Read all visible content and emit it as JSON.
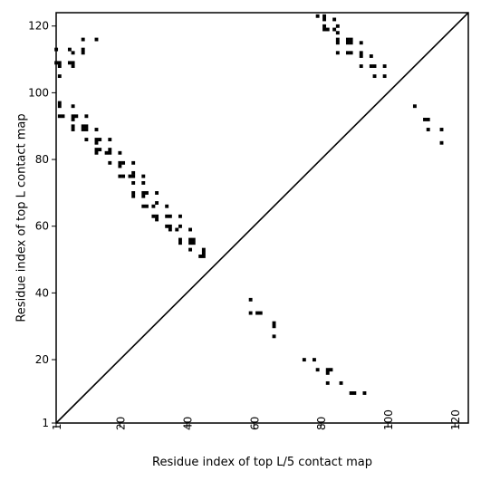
{
  "chart_data": {
    "type": "scatter",
    "title": "",
    "xlabel": "Residue index of top L/5 contact map",
    "ylabel": "Residue index of top L contact map",
    "xlim": [
      1,
      124
    ],
    "ylim": [
      1,
      124
    ],
    "x_ticks": [
      1,
      20,
      40,
      60,
      80,
      100,
      120
    ],
    "y_ticks": [
      1,
      20,
      40,
      60,
      80,
      100,
      120
    ],
    "x_tick_rotation": -90,
    "grid": false,
    "legend": "none",
    "diagonal": {
      "from": [
        1,
        1
      ],
      "to": [
        124,
        124
      ]
    },
    "marker_color": "#000000",
    "series": [
      {
        "values": [
          [
            1,
            113
          ],
          [
            1,
            109
          ],
          [
            2,
            109
          ],
          [
            2,
            108
          ],
          [
            2,
            105
          ],
          [
            2,
            97
          ],
          [
            2,
            96
          ],
          [
            2,
            93
          ],
          [
            3,
            93
          ],
          [
            5,
            113
          ],
          [
            5,
            109
          ],
          [
            6,
            109
          ],
          [
            6,
            108
          ],
          [
            6,
            112
          ],
          [
            6,
            96
          ],
          [
            6,
            93
          ],
          [
            6,
            92
          ],
          [
            7,
            93
          ],
          [
            6,
            90
          ],
          [
            6,
            89
          ],
          [
            9,
            116
          ],
          [
            9,
            113
          ],
          [
            9,
            112
          ],
          [
            9,
            90
          ],
          [
            9,
            89
          ],
          [
            10,
            89
          ],
          [
            10,
            93
          ],
          [
            10,
            86
          ],
          [
            10,
            90
          ],
          [
            13,
            116
          ],
          [
            13,
            89
          ],
          [
            13,
            86
          ],
          [
            14,
            86
          ],
          [
            13,
            85
          ],
          [
            13,
            83
          ],
          [
            13,
            82
          ],
          [
            14,
            83
          ],
          [
            16,
            82
          ],
          [
            17,
            82
          ],
          [
            17,
            83
          ],
          [
            17,
            86
          ],
          [
            17,
            79
          ],
          [
            20,
            82
          ],
          [
            20,
            79
          ],
          [
            21,
            79
          ],
          [
            20,
            78
          ],
          [
            20,
            75
          ],
          [
            21,
            75
          ],
          [
            23,
            75
          ],
          [
            24,
            75
          ],
          [
            24,
            76
          ],
          [
            24,
            79
          ],
          [
            24,
            73
          ],
          [
            24,
            70
          ],
          [
            24,
            69
          ],
          [
            27,
            75
          ],
          [
            27,
            73
          ],
          [
            27,
            70
          ],
          [
            27,
            69
          ],
          [
            28,
            70
          ],
          [
            27,
            66
          ],
          [
            28,
            66
          ],
          [
            30,
            66
          ],
          [
            31,
            67
          ],
          [
            31,
            70
          ],
          [
            30,
            63
          ],
          [
            31,
            62
          ],
          [
            31,
            63
          ],
          [
            34,
            66
          ],
          [
            34,
            63
          ],
          [
            35,
            63
          ],
          [
            34,
            60
          ],
          [
            35,
            60
          ],
          [
            35,
            59
          ],
          [
            37,
            59
          ],
          [
            38,
            60
          ],
          [
            38,
            63
          ],
          [
            38,
            56
          ],
          [
            38,
            55
          ],
          [
            41,
            59
          ],
          [
            41,
            56
          ],
          [
            42,
            56
          ],
          [
            41,
            55
          ],
          [
            42,
            55
          ],
          [
            41,
            53
          ],
          [
            44,
            51
          ],
          [
            45,
            51
          ],
          [
            45,
            52
          ],
          [
            45,
            53
          ],
          [
            59,
            38
          ],
          [
            59,
            34
          ],
          [
            61,
            34
          ],
          [
            62,
            34
          ],
          [
            66,
            31
          ],
          [
            66,
            30
          ],
          [
            66,
            27
          ],
          [
            75,
            20
          ],
          [
            78,
            20
          ],
          [
            79,
            17
          ],
          [
            82,
            17
          ],
          [
            83,
            17
          ],
          [
            82,
            16
          ],
          [
            82,
            13
          ],
          [
            86,
            13
          ],
          [
            89,
            10
          ],
          [
            90,
            10
          ],
          [
            93,
            10
          ],
          [
            79,
            123
          ],
          [
            81,
            123
          ],
          [
            81,
            122
          ],
          [
            81,
            120
          ],
          [
            81,
            119
          ],
          [
            82,
            119
          ],
          [
            84,
            122
          ],
          [
            84,
            119
          ],
          [
            85,
            120
          ],
          [
            85,
            118
          ],
          [
            85,
            116
          ],
          [
            85,
            115
          ],
          [
            85,
            112
          ],
          [
            88,
            116
          ],
          [
            89,
            116
          ],
          [
            88,
            115
          ],
          [
            89,
            115
          ],
          [
            88,
            112
          ],
          [
            89,
            112
          ],
          [
            92,
            115
          ],
          [
            92,
            112
          ],
          [
            92,
            111
          ],
          [
            92,
            108
          ],
          [
            95,
            111
          ],
          [
            95,
            108
          ],
          [
            96,
            108
          ],
          [
            96,
            105
          ],
          [
            99,
            108
          ],
          [
            99,
            105
          ],
          [
            108,
            96
          ],
          [
            111,
            92
          ],
          [
            112,
            92
          ],
          [
            112,
            89
          ],
          [
            116,
            89
          ],
          [
            116,
            85
          ]
        ]
      }
    ]
  }
}
